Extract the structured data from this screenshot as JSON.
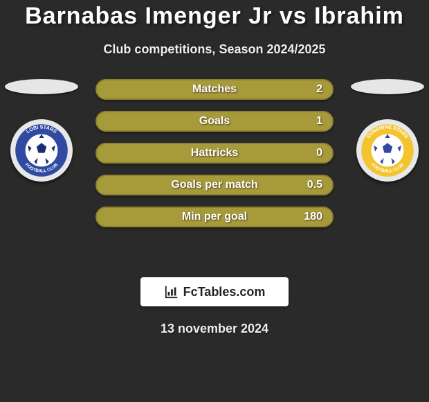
{
  "title": "Barnabas Imenger Jr vs Ibrahim",
  "subtitle": "Club competitions, Season 2024/2025",
  "date": "13 november 2024",
  "brand": "FcTables.com",
  "stats": [
    {
      "label": "Matches",
      "value": "2"
    },
    {
      "label": "Goals",
      "value": "1"
    },
    {
      "label": "Hattricks",
      "value": "0"
    },
    {
      "label": "Goals per match",
      "value": "0.5"
    },
    {
      "label": "Min per goal",
      "value": "180"
    }
  ],
  "style": {
    "bar_color": "#a79a3a",
    "bar_border": "#8d8230",
    "badge_left": {
      "outer": "#e8e8e8",
      "ring": "#2f4aa0",
      "ball": "#ffffff",
      "pent": "#1b2d73",
      "lines": [
        "LOBI STARS",
        "FOOTBALL CLUB"
      ]
    },
    "badge_right": {
      "outer": "#e8e8e8",
      "ring": "#f4c430",
      "ball": "#ffffff",
      "pent": "#2f4aa0",
      "lines": [
        "SUNSHINE STARS",
        "FOOTBALL CLUB"
      ]
    }
  }
}
